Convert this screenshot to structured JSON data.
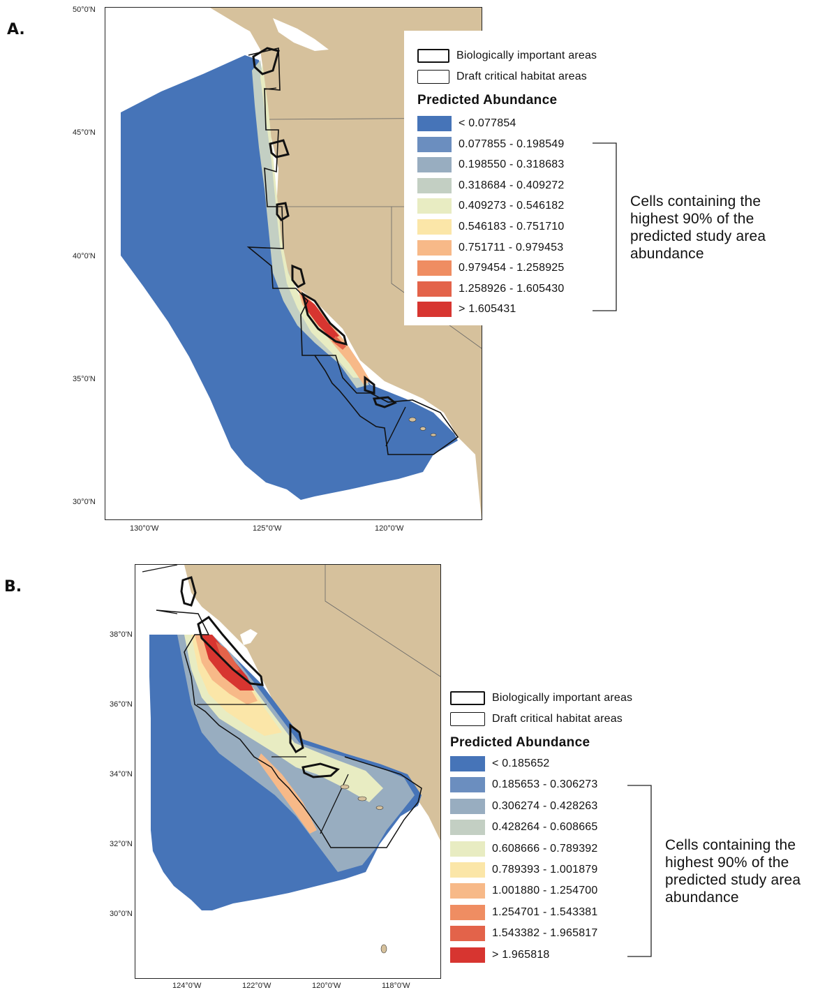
{
  "panels": [
    {
      "letter": "A.",
      "lat_ticks": [
        "50°0'N",
        "45°0'N",
        "40°0'N",
        "35°0'N",
        "30°0'N"
      ],
      "lon_ticks": [
        "130°0'W",
        "125°0'W",
        "120°0'W"
      ],
      "legend": {
        "bia_label": "Biologically important areas",
        "dch_label": "Draft critical habitat areas",
        "title": "Predicted Abundance",
        "classes": [
          {
            "label": "< 0.077854",
            "color": "#4674b8"
          },
          {
            "label": "0.077855 - 0.198549",
            "color": "#6b8ebf"
          },
          {
            "label": "0.198550 - 0.318683",
            "color": "#98adc0"
          },
          {
            "label": "0.318684 - 0.409272",
            "color": "#c3cfc3"
          },
          {
            "label": "0.409273 - 0.546182",
            "color": "#e8ecc2"
          },
          {
            "label": "0.546183 - 0.751710",
            "color": "#fbe6a8"
          },
          {
            "label": "0.751711 - 0.979453",
            "color": "#f7b988"
          },
          {
            "label": "0.979454 - 1.258925",
            "color": "#ef8d62"
          },
          {
            "label": "1.258926 - 1.605430",
            "color": "#e3634a"
          },
          {
            "label": "> 1.605431",
            "color": "#d73530"
          }
        ]
      },
      "note_lines": [
        "Cells containing the",
        "highest 90% of the",
        "predicted study area",
        "abundance"
      ]
    },
    {
      "letter": "B.",
      "lat_ticks": [
        "38°0'N",
        "36°0'N",
        "34°0'N",
        "32°0'N",
        "30°0'N"
      ],
      "lon_ticks": [
        "124°0'W",
        "122°0'W",
        "120°0'W",
        "118°0'W"
      ],
      "legend": {
        "bia_label": "Biologically important areas",
        "dch_label": "Draft critical habitat areas",
        "title": "Predicted Abundance",
        "classes": [
          {
            "label": "< 0.185652",
            "color": "#4674b8"
          },
          {
            "label": "0.185653 - 0.306273",
            "color": "#6b8ebf"
          },
          {
            "label": "0.306274 - 0.428263",
            "color": "#98adc0"
          },
          {
            "label": "0.428264 - 0.608665",
            "color": "#c3cfc3"
          },
          {
            "label": "0.608666 - 0.789392",
            "color": "#e8ecc2"
          },
          {
            "label": "0.789393 - 1.001879",
            "color": "#fbe6a8"
          },
          {
            "label": "1.001880 - 1.254700",
            "color": "#f7b988"
          },
          {
            "label": "1.254701 - 1.543381",
            "color": "#ef8d62"
          },
          {
            "label": "1.543382 - 1.965817",
            "color": "#e3634a"
          },
          {
            "label": "> 1.965818",
            "color": "#d73530"
          }
        ]
      },
      "note_lines": [
        "Cells containing the",
        "highest 90% of the",
        "predicted study area",
        "abundance"
      ]
    }
  ],
  "colors": {
    "land": "#d6c19c",
    "ocean": "#ffffff",
    "boundary": "#111111"
  }
}
